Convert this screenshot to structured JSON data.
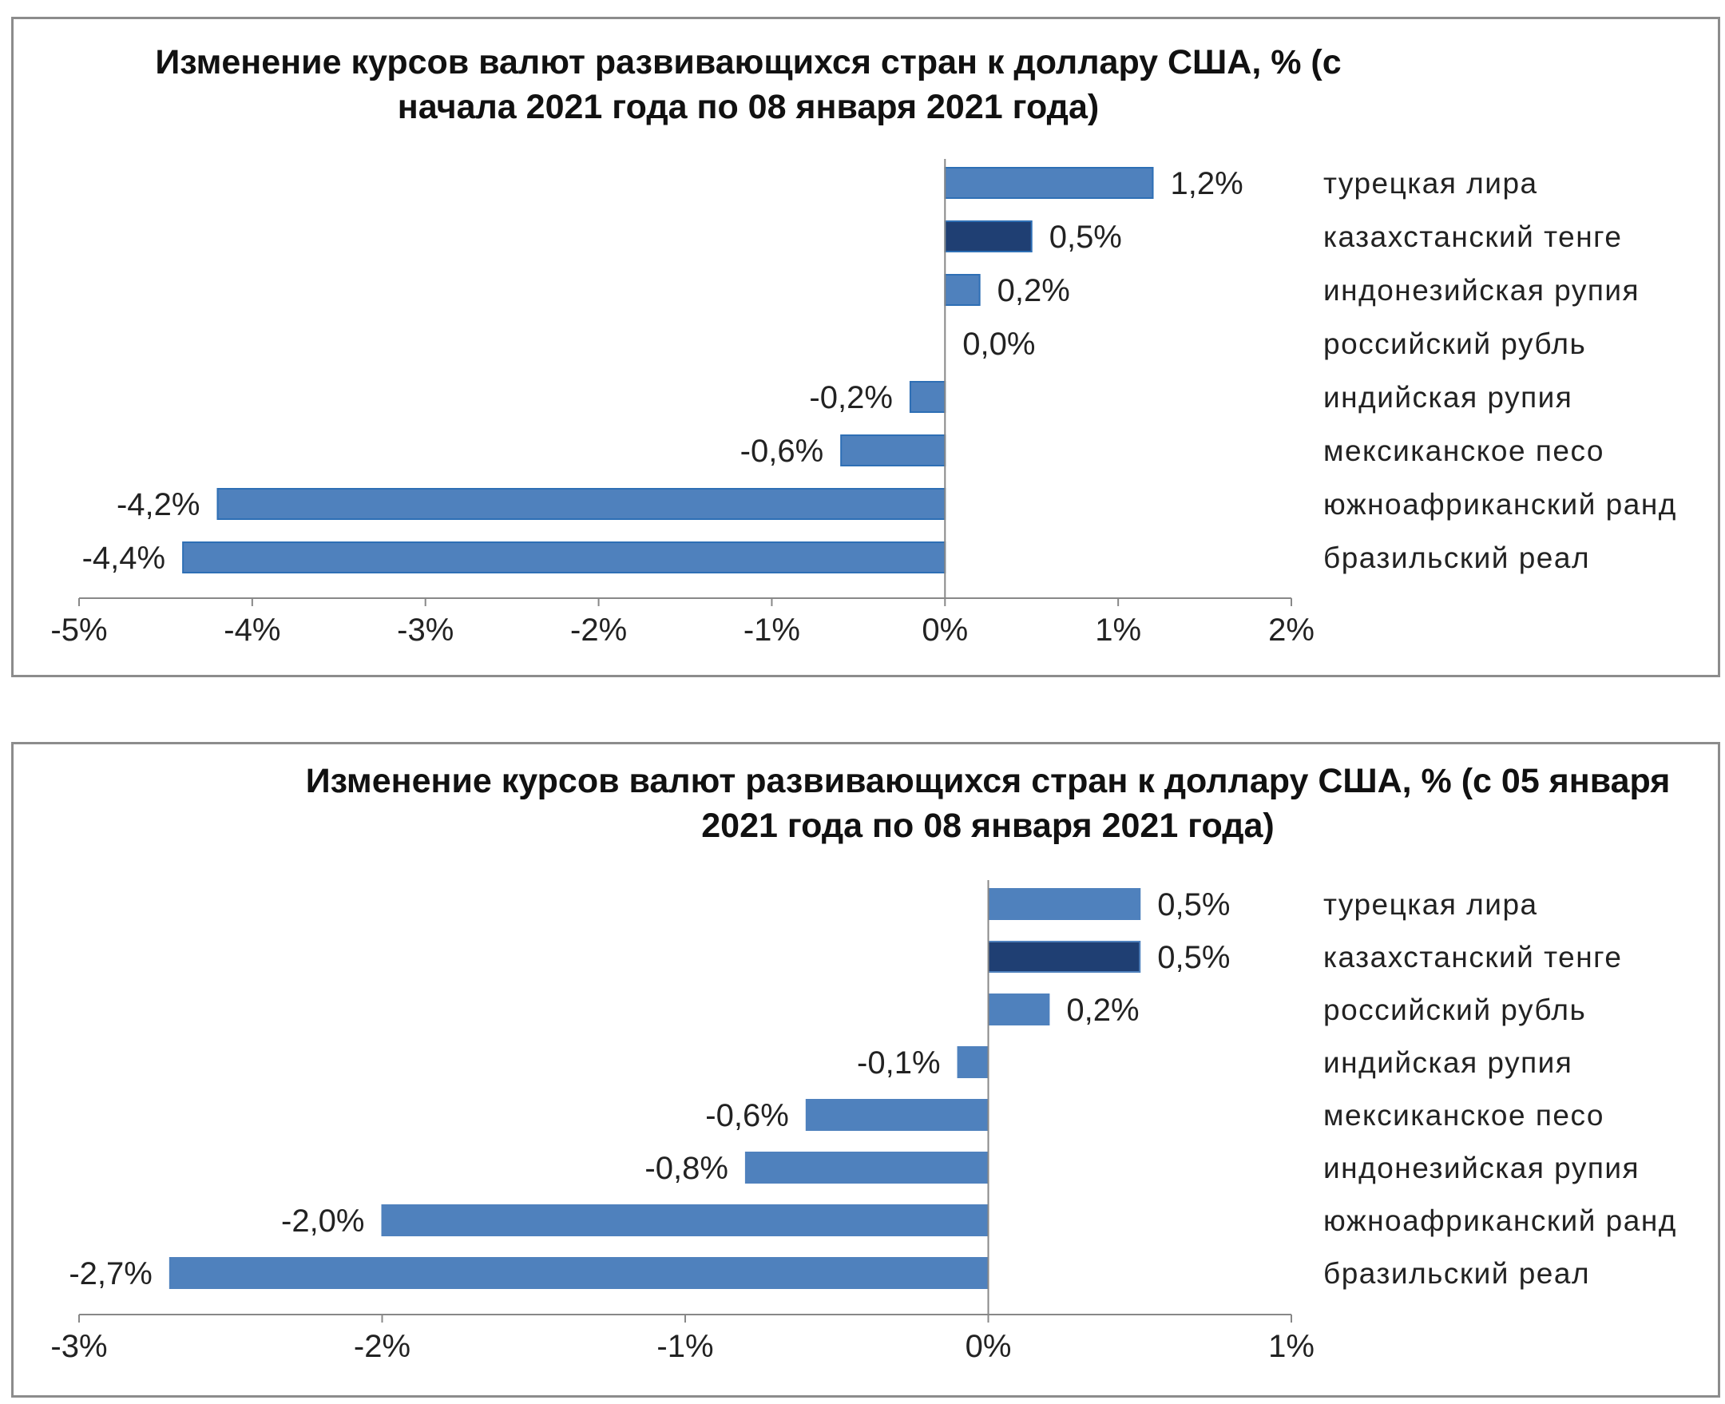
{
  "chart_data": [
    {
      "type": "bar",
      "orientation": "horizontal",
      "title": "Изменение курсов валют развивающихся стран  к доллару США,  % (с начала 2021 года по 08 января 2021 года)",
      "categories": [
        "турецкая лира",
        "казахстанский тенге",
        "индонезийская рупия",
        "российский рубль",
        "индийская рупия",
        "мексиканское песо",
        "южноафриканский ранд",
        "бразильский реал"
      ],
      "values": [
        1.2,
        0.5,
        0.2,
        0.0,
        -0.2,
        -0.6,
        -4.2,
        -4.4
      ],
      "value_labels": [
        "1,2%",
        "0,5%",
        "0,2%",
        "0,0%",
        "-0,2%",
        "-0,6%",
        "-4,2%",
        "-4,4%"
      ],
      "highlight_index": 1,
      "xlim": [
        -5,
        2
      ],
      "x_ticks": [
        -5,
        -4,
        -3,
        -2,
        -1,
        0,
        1,
        2
      ],
      "x_tick_labels": [
        "-5%",
        "-4%",
        "-3%",
        "-2%",
        "-1%",
        "0%",
        "1%",
        "2%"
      ],
      "colors": {
        "bar": "#4f81bd",
        "highlight": "#1f3f73",
        "bar_border": "#2e6fb5"
      },
      "grid": false,
      "legend": "none"
    },
    {
      "type": "bar",
      "orientation": "horizontal",
      "title": "Изменение курсов валют развивающихся стран  к доллару США,  % (с 05 января 2021 года по 08 января 2021 года)",
      "categories": [
        "турецкая лира",
        "казахстанский тенге",
        "российский рубль",
        "индийская рупия",
        "мексиканское песо",
        "индонезийская рупия",
        "южноафриканский ранд",
        "бразильский реал"
      ],
      "values": [
        0.5,
        0.5,
        0.2,
        -0.1,
        -0.6,
        -0.8,
        -2.0,
        -2.7
      ],
      "value_labels": [
        "0,5%",
        "0,5%",
        "0,2%",
        "-0,1%",
        "-0,6%",
        "-0,8%",
        "-2,0%",
        "-2,7%"
      ],
      "highlight_index": 1,
      "xlim": [
        -3,
        1
      ],
      "x_ticks": [
        -3,
        -2,
        -1,
        0,
        1
      ],
      "x_tick_labels": [
        "-3%",
        "-2%",
        "-1%",
        "0%",
        "1%"
      ],
      "colors": {
        "bar": "#4f81bd",
        "highlight": "#1f3f73",
        "bar_border": "#4f81bd"
      },
      "grid": false,
      "legend": "none"
    }
  ]
}
